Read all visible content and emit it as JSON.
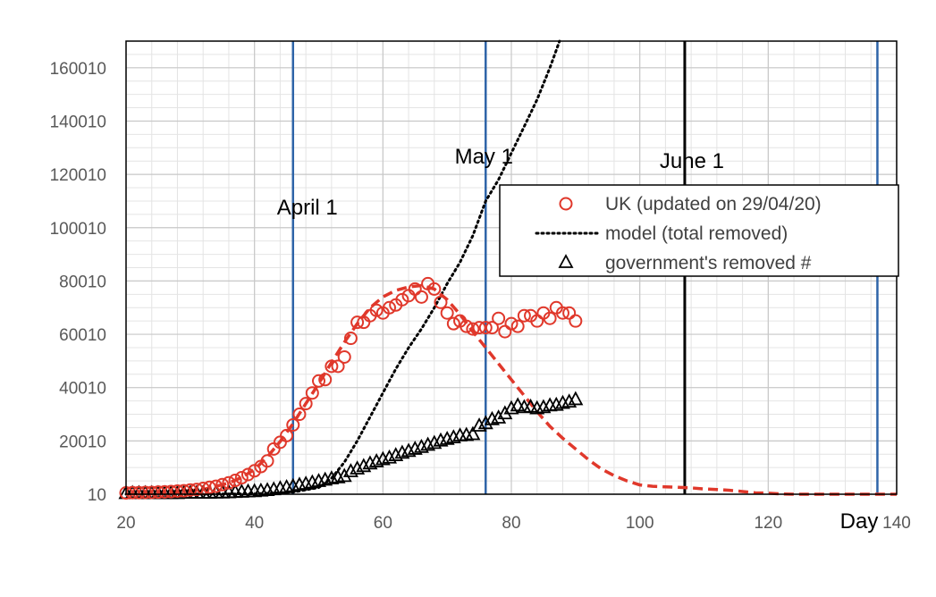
{
  "chart_data": {
    "type": "scatter",
    "title": "",
    "xlabel": "Day",
    "ylabel": "",
    "xlim": [
      20,
      140
    ],
    "ylim": [
      10,
      170010
    ],
    "x_ticks": [
      20,
      40,
      60,
      80,
      100,
      120,
      140
    ],
    "y_ticks": [
      10,
      20010,
      40010,
      60010,
      80010,
      100010,
      120010,
      140010,
      160010
    ],
    "grid": true,
    "legend_position": "right",
    "colors": {
      "uk": "#e0382b",
      "model": "#000000",
      "government": "#000000",
      "blue_line": "#2e64a8",
      "black_line": "#000000",
      "grid_major": "#c8c8c8",
      "grid_minor": "#e4e4e4"
    },
    "vertical_lines": [
      {
        "x": 46,
        "label": "April 1",
        "color": "#2e64a8"
      },
      {
        "x": 76,
        "label": "May 1",
        "color": "#2e64a8"
      },
      {
        "x": 107,
        "label": "June 1",
        "color": "#000000"
      },
      {
        "x": 137,
        "label": "",
        "color": "#2e64a8"
      }
    ],
    "series": [
      {
        "name": "UK (updated on 29/04/20)",
        "kind": "markers-circle",
        "color": "#e0382b",
        "x": [
          20,
          21,
          22,
          23,
          24,
          25,
          26,
          27,
          28,
          29,
          30,
          31,
          32,
          33,
          34,
          35,
          36,
          37,
          38,
          39,
          40,
          41,
          42,
          43,
          44,
          45,
          46,
          47,
          48,
          49,
          50,
          51,
          52,
          53,
          54,
          55,
          56,
          57,
          58,
          59,
          60,
          61,
          62,
          63,
          64,
          65,
          66,
          67,
          68,
          69,
          70,
          71,
          72,
          73,
          74,
          75,
          76,
          77,
          78,
          79,
          80,
          81,
          82,
          83,
          84,
          85,
          86,
          87,
          88,
          89,
          90
        ],
        "y": [
          500,
          600,
          600,
          700,
          700,
          800,
          900,
          1000,
          1200,
          1300,
          1600,
          1800,
          2200,
          2600,
          3000,
          3600,
          4300,
          5200,
          6200,
          7400,
          8800,
          10400,
          12500,
          17000,
          19500,
          22000,
          26000,
          30000,
          34000,
          38000,
          42500,
          43000,
          48000,
          48000,
          51500,
          58500,
          64500,
          64500,
          67000,
          69000,
          68000,
          70000,
          71000,
          73000,
          74500,
          77000,
          74000,
          79000,
          77000,
          72000,
          68000,
          64000,
          65000,
          63000,
          62000,
          62500,
          62500,
          62500,
          66000,
          61000,
          64000,
          63000,
          67000,
          67000,
          65000,
          68000,
          66000,
          70000,
          68000,
          68000,
          65000
        ]
      },
      {
        "name": "model (total removed)",
        "kind": "line-dotted",
        "color": "#000000",
        "x": [
          20,
          30,
          40,
          46,
          50,
          52,
          54,
          56,
          58,
          60,
          62,
          64,
          66,
          68,
          70,
          72,
          74,
          76,
          78,
          80,
          82,
          84,
          86,
          87.5
        ],
        "y": [
          0,
          50,
          150,
          800,
          2500,
          6000,
          12000,
          20000,
          29000,
          38000,
          47000,
          55000,
          62000,
          70000,
          79000,
          87000,
          97000,
          110000,
          118000,
          128000,
          138000,
          148000,
          160000,
          170010
        ]
      },
      {
        "name": "government's removed #",
        "kind": "markers-triangle",
        "color": "#000000",
        "x": [
          20,
          21,
          22,
          23,
          24,
          25,
          26,
          27,
          28,
          29,
          30,
          31,
          32,
          33,
          34,
          35,
          36,
          37,
          38,
          39,
          40,
          41,
          42,
          43,
          44,
          45,
          46,
          47,
          48,
          49,
          50,
          51,
          52,
          53,
          54,
          55,
          56,
          57,
          58,
          59,
          60,
          61,
          62,
          63,
          64,
          65,
          66,
          67,
          68,
          69,
          70,
          71,
          72,
          73,
          74,
          75,
          76,
          77,
          78,
          79,
          80,
          81,
          82,
          83,
          84,
          85,
          86,
          87,
          88,
          89,
          90
        ],
        "y": [
          200,
          200,
          200,
          200,
          200,
          200,
          200,
          200,
          200,
          300,
          300,
          300,
          300,
          300,
          400,
          400,
          500,
          600,
          700,
          800,
          900,
          1100,
          1300,
          1600,
          2000,
          2400,
          2800,
          3300,
          3700,
          4200,
          4700,
          5200,
          5700,
          6100,
          6600,
          8400,
          9400,
          10300,
          11300,
          12100,
          12900,
          13500,
          14400,
          15300,
          16000,
          16800,
          17500,
          18300,
          19000,
          19900,
          20500,
          21100,
          21800,
          22000,
          22300,
          25500,
          26400,
          27900,
          28500,
          30100,
          32000,
          33100,
          32400,
          32600,
          32000,
          32400,
          33100,
          33300,
          34000,
          34500,
          35400
        ]
      },
      {
        "name": "",
        "kind": "line-dashed",
        "color": "#e0382b",
        "x": [
          20,
          26,
          32,
          36,
          38,
          40,
          42,
          44,
          46,
          48,
          50,
          52,
          54,
          56,
          58,
          60,
          62,
          64,
          66,
          68,
          70,
          72,
          74,
          76,
          78,
          80,
          82,
          84,
          86,
          88,
          90,
          92,
          94,
          96,
          98,
          100,
          102,
          104,
          106,
          108,
          110,
          112,
          114,
          116,
          118,
          120,
          122,
          124,
          126,
          128,
          130,
          132,
          134,
          136,
          138,
          140
        ],
        "y": [
          0,
          600,
          1800,
          4200,
          6300,
          9300,
          14000,
          19800,
          26500,
          34000,
          41500,
          49500,
          57000,
          64000,
          70000,
          74000,
          76500,
          77800,
          78300,
          77000,
          73000,
          67500,
          61000,
          55000,
          49000,
          43000,
          37000,
          31000,
          25500,
          21000,
          17000,
          13000,
          9500,
          7000,
          5000,
          3500,
          3000,
          2800,
          2600,
          2400,
          2000,
          1800,
          1500,
          1000,
          500,
          400,
          100,
          0,
          0,
          0,
          0,
          0,
          0,
          0,
          0,
          0
        ]
      }
    ],
    "legend": [
      {
        "label": "UK (updated on 29/04/20)",
        "symbol": "circle"
      },
      {
        "label": "model (total removed)",
        "symbol": "dotted-line"
      },
      {
        "label": "government's removed #",
        "symbol": "triangle"
      }
    ]
  }
}
